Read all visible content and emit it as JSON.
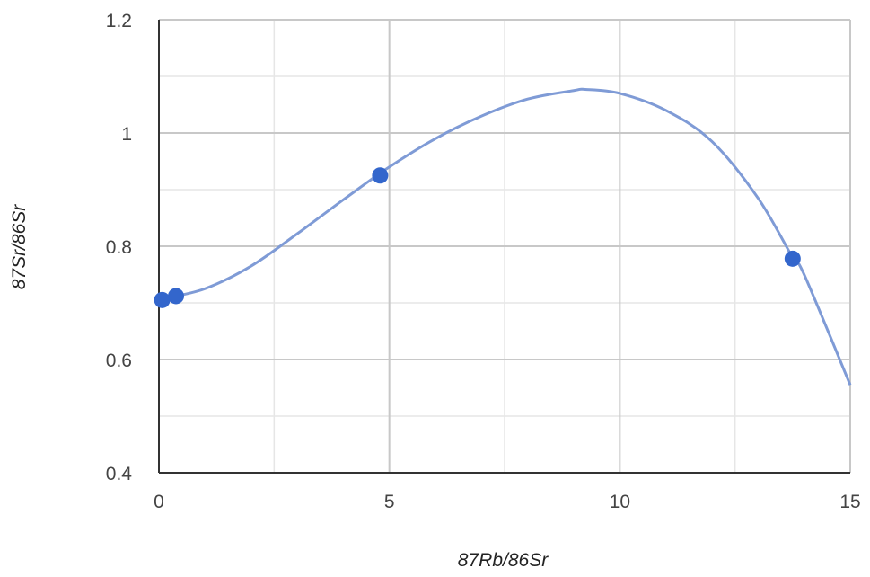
{
  "chart_data": {
    "type": "scatter",
    "title": "",
    "xlabel": "87Rb/86Sr",
    "ylabel": "87Sr/86Sr",
    "xlim": [
      0,
      15
    ],
    "ylim": [
      0.4,
      1.2
    ],
    "x_major_ticks": [
      0,
      5,
      10,
      15
    ],
    "x_tick_labels": [
      "0",
      "5",
      "10",
      "15"
    ],
    "x_minor_ticks": [
      2.5,
      7.5,
      12.5
    ],
    "y_major_ticks": [
      0.4,
      0.6,
      0.8,
      1.0,
      1.2
    ],
    "y_tick_labels": [
      "0.4",
      "0.6",
      "0.8",
      "1",
      "1.2"
    ],
    "y_minor_ticks": [
      0.5,
      0.7,
      0.9,
      1.1
    ],
    "grid": true,
    "legend": "none",
    "series": [
      {
        "points": [
          {
            "x": 0.07,
            "y": 0.705
          },
          {
            "x": 0.37,
            "y": 0.712
          },
          {
            "x": 4.8,
            "y": 0.925
          },
          {
            "x": 13.75,
            "y": 0.778
          }
        ],
        "color": "#3366cc"
      }
    ],
    "trendline": {
      "type": "polynomial",
      "color": "#7f9bd6",
      "points": [
        {
          "x": 0.07,
          "y": 0.707
        },
        {
          "x": 1.0,
          "y": 0.725
        },
        {
          "x": 2.0,
          "y": 0.765
        },
        {
          "x": 3.0,
          "y": 0.822
        },
        {
          "x": 4.0,
          "y": 0.882
        },
        {
          "x": 5.0,
          "y": 0.94
        },
        {
          "x": 6.0,
          "y": 0.99
        },
        {
          "x": 7.0,
          "y": 1.03
        },
        {
          "x": 8.0,
          "y": 1.06
        },
        {
          "x": 9.0,
          "y": 1.075
        },
        {
          "x": 9.25,
          "y": 1.077
        },
        {
          "x": 10.0,
          "y": 1.07
        },
        {
          "x": 11.0,
          "y": 1.04
        },
        {
          "x": 12.0,
          "y": 0.985
        },
        {
          "x": 13.0,
          "y": 0.885
        },
        {
          "x": 13.75,
          "y": 0.78
        },
        {
          "x": 14.0,
          "y": 0.75
        },
        {
          "x": 15.0,
          "y": 0.555
        }
      ]
    }
  }
}
